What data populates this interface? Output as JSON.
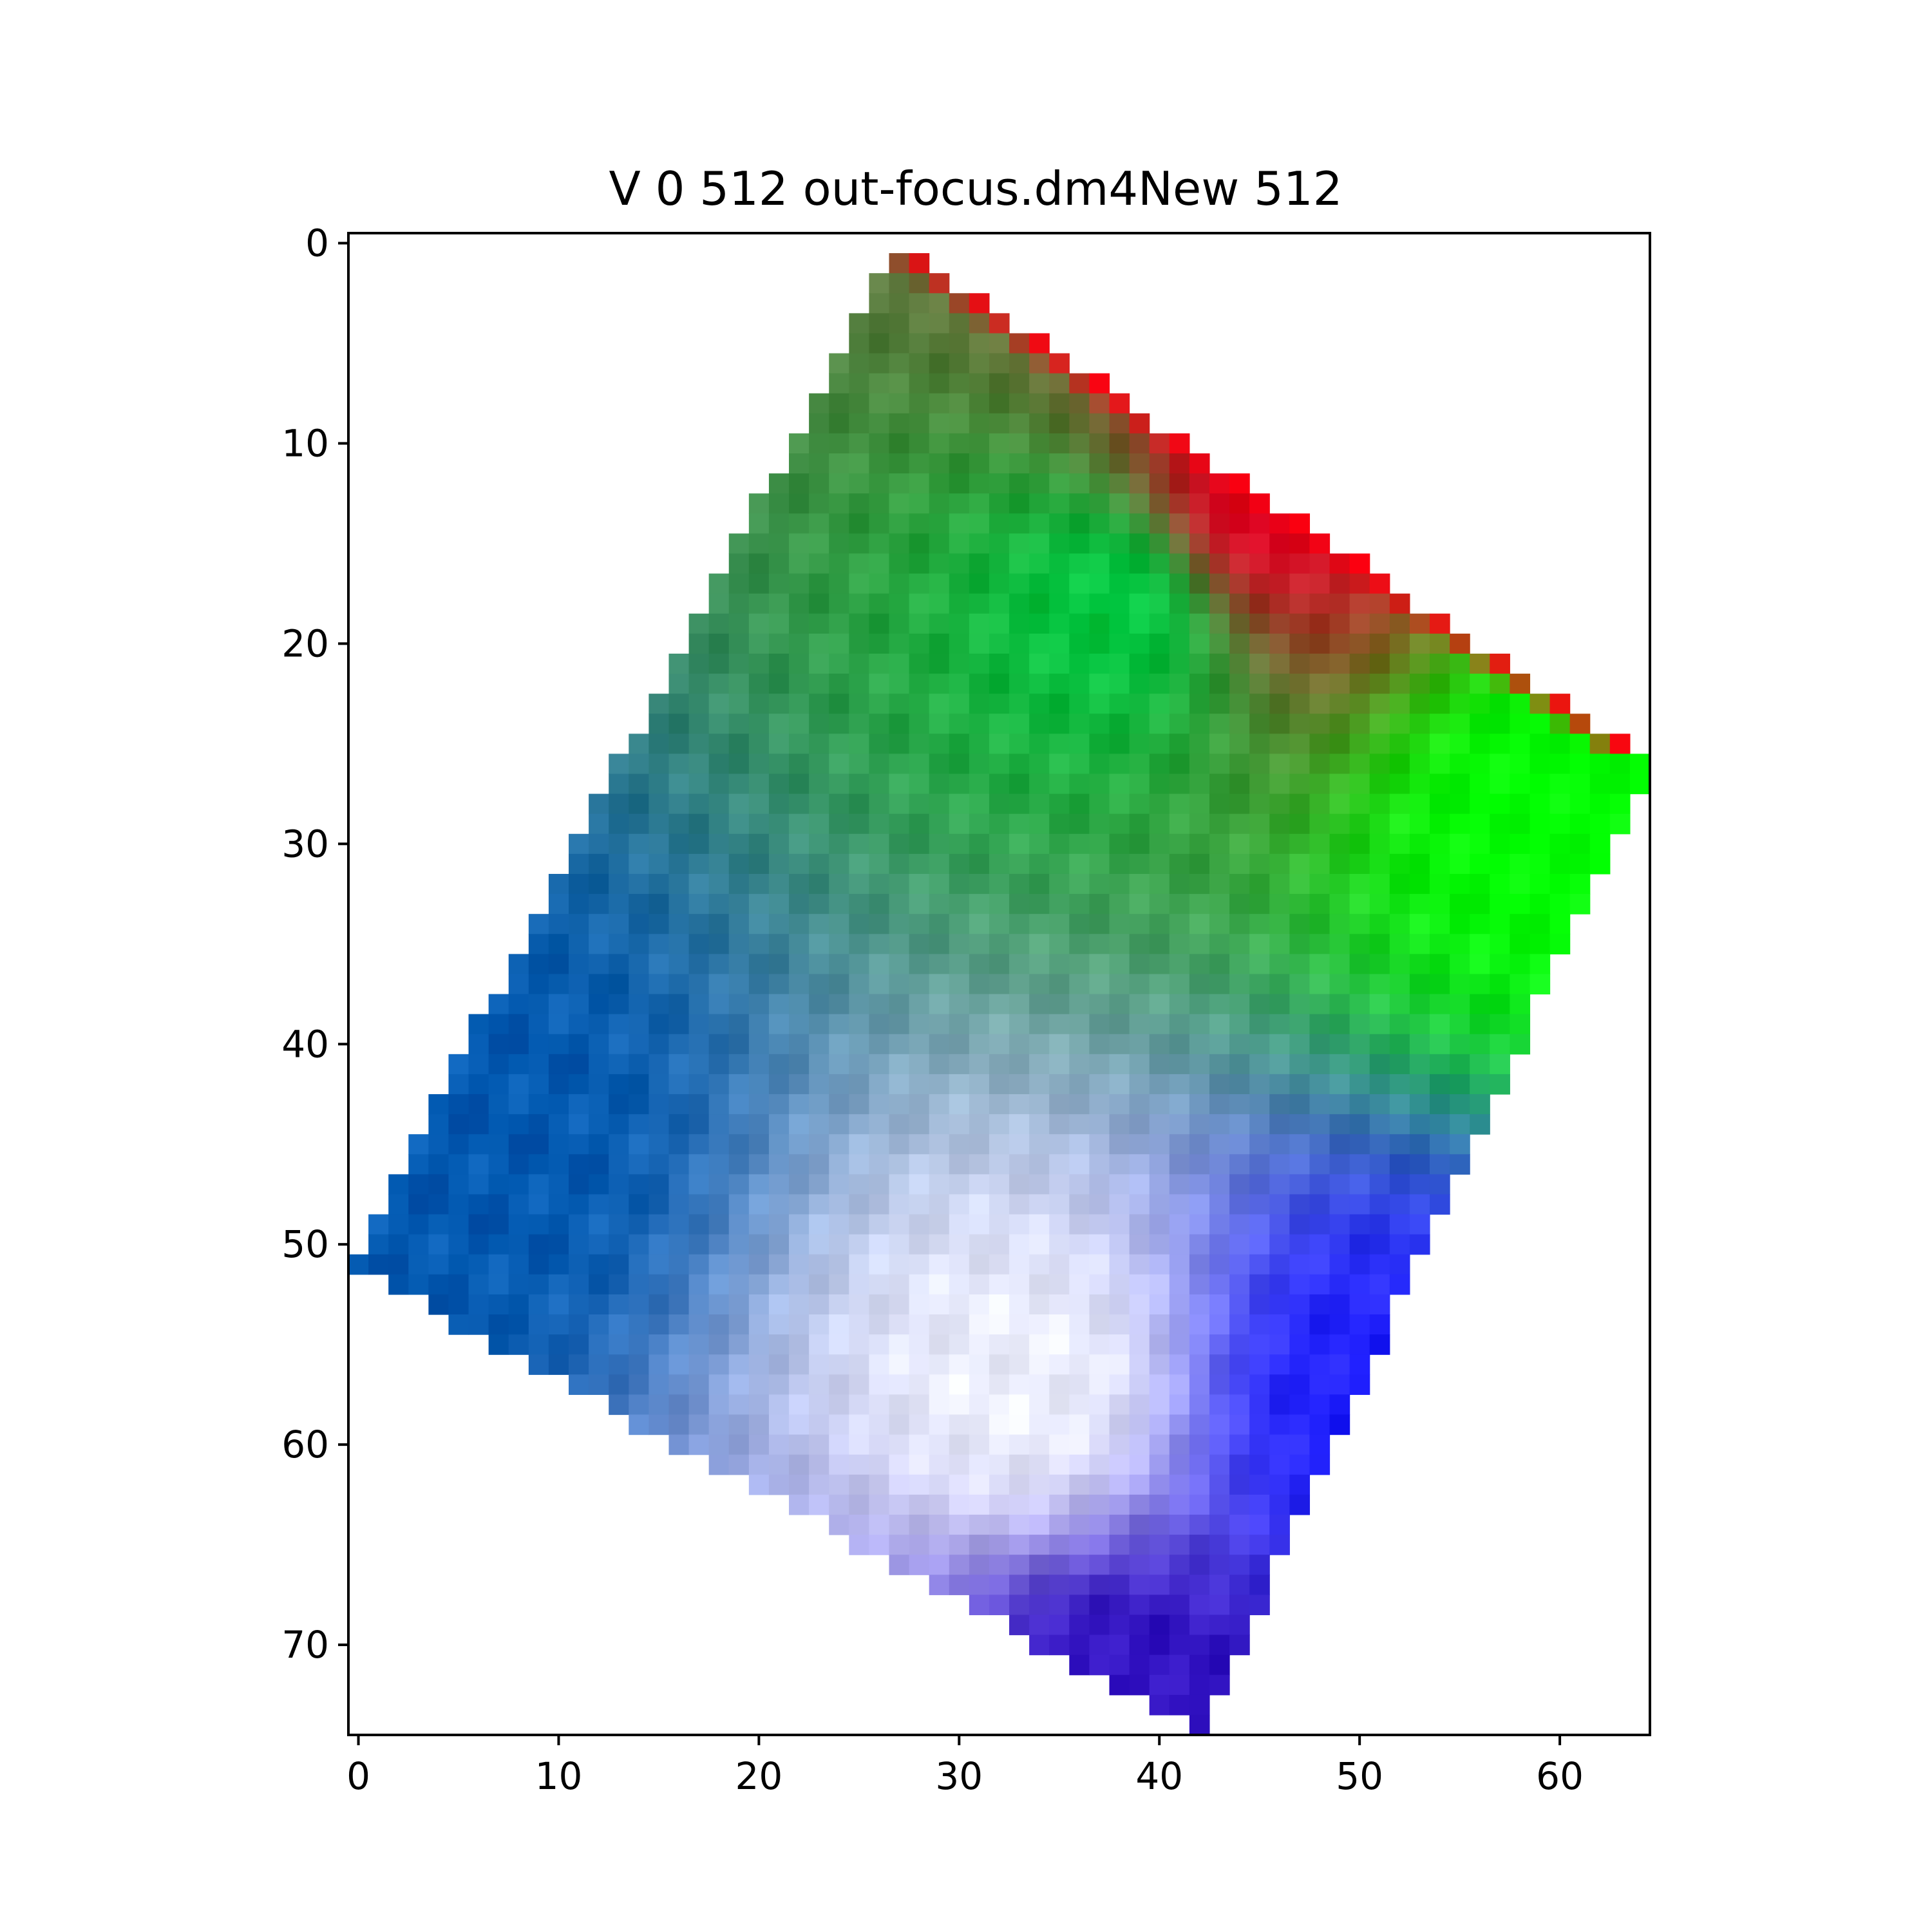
{
  "chart_data": {
    "type": "heatmap",
    "title": "V 0 512 out-focus.dm4New 512",
    "xlabel": "",
    "ylabel": "",
    "xlim": [
      -0.5,
      64.5
    ],
    "ylim": [
      74.5,
      -0.5
    ],
    "x_ticks": [
      0,
      10,
      20,
      30,
      40,
      50,
      60
    ],
    "y_ticks": [
      0,
      10,
      20,
      30,
      40,
      50,
      60,
      70
    ],
    "x_tick_labels": [
      "0",
      "10",
      "20",
      "30",
      "40",
      "50",
      "60"
    ],
    "y_tick_labels": [
      "0",
      "10",
      "20",
      "30",
      "40",
      "50",
      "60",
      "70"
    ],
    "grid": false,
    "image_shape": [
      75,
      65
    ],
    "valid_region_corners": [
      [
        27,
        0
      ],
      [
        64.5,
        26
      ],
      [
        42,
        74.5
      ],
      [
        -0.5,
        51
      ]
    ],
    "edge_stripe": [
      [
        27,
        0
      ],
      [
        64.5,
        26
      ]
    ],
    "color_regions": [
      {
        "name": "green top",
        "center": [
          38,
          18
        ],
        "color": "#00c840"
      },
      {
        "name": "bright green",
        "center": [
          60,
          29
        ],
        "color": "#00ff00"
      },
      {
        "name": "teal blue left",
        "center": [
          5,
          45
        ],
        "color": "#0058b0"
      },
      {
        "name": "white center",
        "center": [
          33,
          57
        ],
        "color": "#eef0ff"
      },
      {
        "name": "blue right",
        "center": [
          51,
          58
        ],
        "color": "#2020ff"
      },
      {
        "name": "dark purple bottom",
        "center": [
          38,
          73
        ],
        "color": "#3010c0"
      },
      {
        "name": "red edge",
        "center": [
          45,
          13
        ],
        "color": "#e00020"
      }
    ],
    "colors": {
      "green": "#00c840",
      "bright_green": "#00ff00",
      "teal": "#00907a",
      "blue": "#0050b0",
      "light": "#eef0ff",
      "pure_blue": "#1010ff",
      "purple": "#4010c0",
      "red": "#ff0010"
    }
  }
}
